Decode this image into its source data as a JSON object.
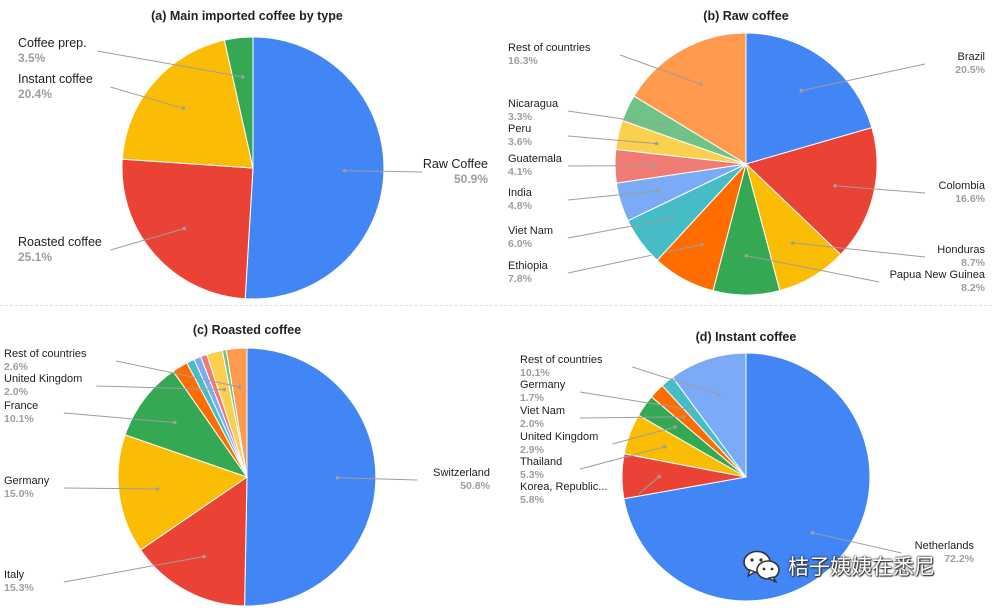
{
  "chart_data": [
    {
      "type": "pie",
      "title": "(a) Main imported coffee by type",
      "slices": [
        {
          "label": "Raw Coffee",
          "value": 50.9,
          "pct": "50.9%",
          "color": "#4285f4"
        },
        {
          "label": "Roasted coffee",
          "value": 25.1,
          "pct": "25.1%",
          "color": "#ea4335"
        },
        {
          "label": "Instant coffee",
          "value": 20.4,
          "pct": "20.4%",
          "color": "#fbbc04"
        },
        {
          "label": "Coffee prep.",
          "value": 3.5,
          "pct": "3.5%",
          "color": "#34a853"
        }
      ]
    },
    {
      "type": "pie",
      "title": "(b) Raw coffee",
      "slices": [
        {
          "label": "Brazil",
          "value": 20.5,
          "pct": "20.5%",
          "color": "#4285f4"
        },
        {
          "label": "Colombia",
          "value": 16.6,
          "pct": "16.6%",
          "color": "#ea4335"
        },
        {
          "label": "Honduras",
          "value": 8.7,
          "pct": "8.7%",
          "color": "#fbbc04"
        },
        {
          "label": "Papua New Guinea",
          "value": 8.2,
          "pct": "8.2%",
          "color": "#34a853"
        },
        {
          "label": "Ethiopia",
          "value": 7.8,
          "pct": "7.8%",
          "color": "#ff6d01"
        },
        {
          "label": "Viet Nam",
          "value": 6.0,
          "pct": "6.0%",
          "color": "#46bdc6"
        },
        {
          "label": "India",
          "value": 4.8,
          "pct": "4.8%",
          "color": "#7baaf7"
        },
        {
          "label": "Guatemala",
          "value": 4.1,
          "pct": "4.1%",
          "color": "#f07b72"
        },
        {
          "label": "Peru",
          "value": 3.6,
          "pct": "3.6%",
          "color": "#fcd04f"
        },
        {
          "label": "Nicaragua",
          "value": 3.3,
          "pct": "3.3%",
          "color": "#71c287"
        },
        {
          "label": "Rest of countries",
          "value": 16.3,
          "pct": "16.3%",
          "color": "#ff994d"
        }
      ]
    },
    {
      "type": "pie",
      "title": "(c) Roasted coffee",
      "slices": [
        {
          "label": "Switzerland",
          "value": 50.8,
          "pct": "50.8%",
          "color": "#4285f4"
        },
        {
          "label": "Italy",
          "value": 15.3,
          "pct": "15.3%",
          "color": "#ea4335"
        },
        {
          "label": "Germany",
          "value": 15.0,
          "pct": "15.0%",
          "color": "#fbbc04"
        },
        {
          "label": "France",
          "value": 10.1,
          "pct": "10.1%",
          "color": "#34a853"
        },
        {
          "label": "",
          "value": 2.0,
          "pct": "",
          "color": "#ff6d01"
        },
        {
          "label": "",
          "value": 1.0,
          "pct": "",
          "color": "#46bdc6"
        },
        {
          "label": "",
          "value": 0.9,
          "pct": "",
          "color": "#7baaf7"
        },
        {
          "label": "",
          "value": 0.8,
          "pct": "",
          "color": "#f07b72"
        },
        {
          "label": "United Kingdom",
          "value": 2.0,
          "pct": "2.0%",
          "color": "#fcd04f"
        },
        {
          "label": "",
          "value": 0.5,
          "pct": "",
          "color": "#71c287"
        },
        {
          "label": "Rest of countries",
          "value": 2.6,
          "pct": "2.6%",
          "color": "#ff994d"
        }
      ]
    },
    {
      "type": "pie",
      "title": "(d) Instant coffee",
      "slices": [
        {
          "label": "Netherlands",
          "value": 72.2,
          "pct": "72.2%",
          "color": "#4285f4"
        },
        {
          "label": "Korea, Republic...",
          "value": 5.8,
          "pct": "5.8%",
          "color": "#ea4335"
        },
        {
          "label": "Thailand",
          "value": 5.3,
          "pct": "5.3%",
          "color": "#fbbc04"
        },
        {
          "label": "United Kingdom",
          "value": 2.9,
          "pct": "2.9%",
          "color": "#34a853"
        },
        {
          "label": "Viet Nam",
          "value": 2.0,
          "pct": "2.0%",
          "color": "#ff6d01"
        },
        {
          "label": "Germany",
          "value": 1.7,
          "pct": "1.7%",
          "color": "#46bdc6"
        },
        {
          "label": "Rest of countries",
          "value": 10.1,
          "pct": "10.1%",
          "color": "#7baaf7"
        }
      ]
    }
  ],
  "watermark": {
    "text": "桔子姨姨在悉尼",
    "icon": "wechat-icon"
  }
}
